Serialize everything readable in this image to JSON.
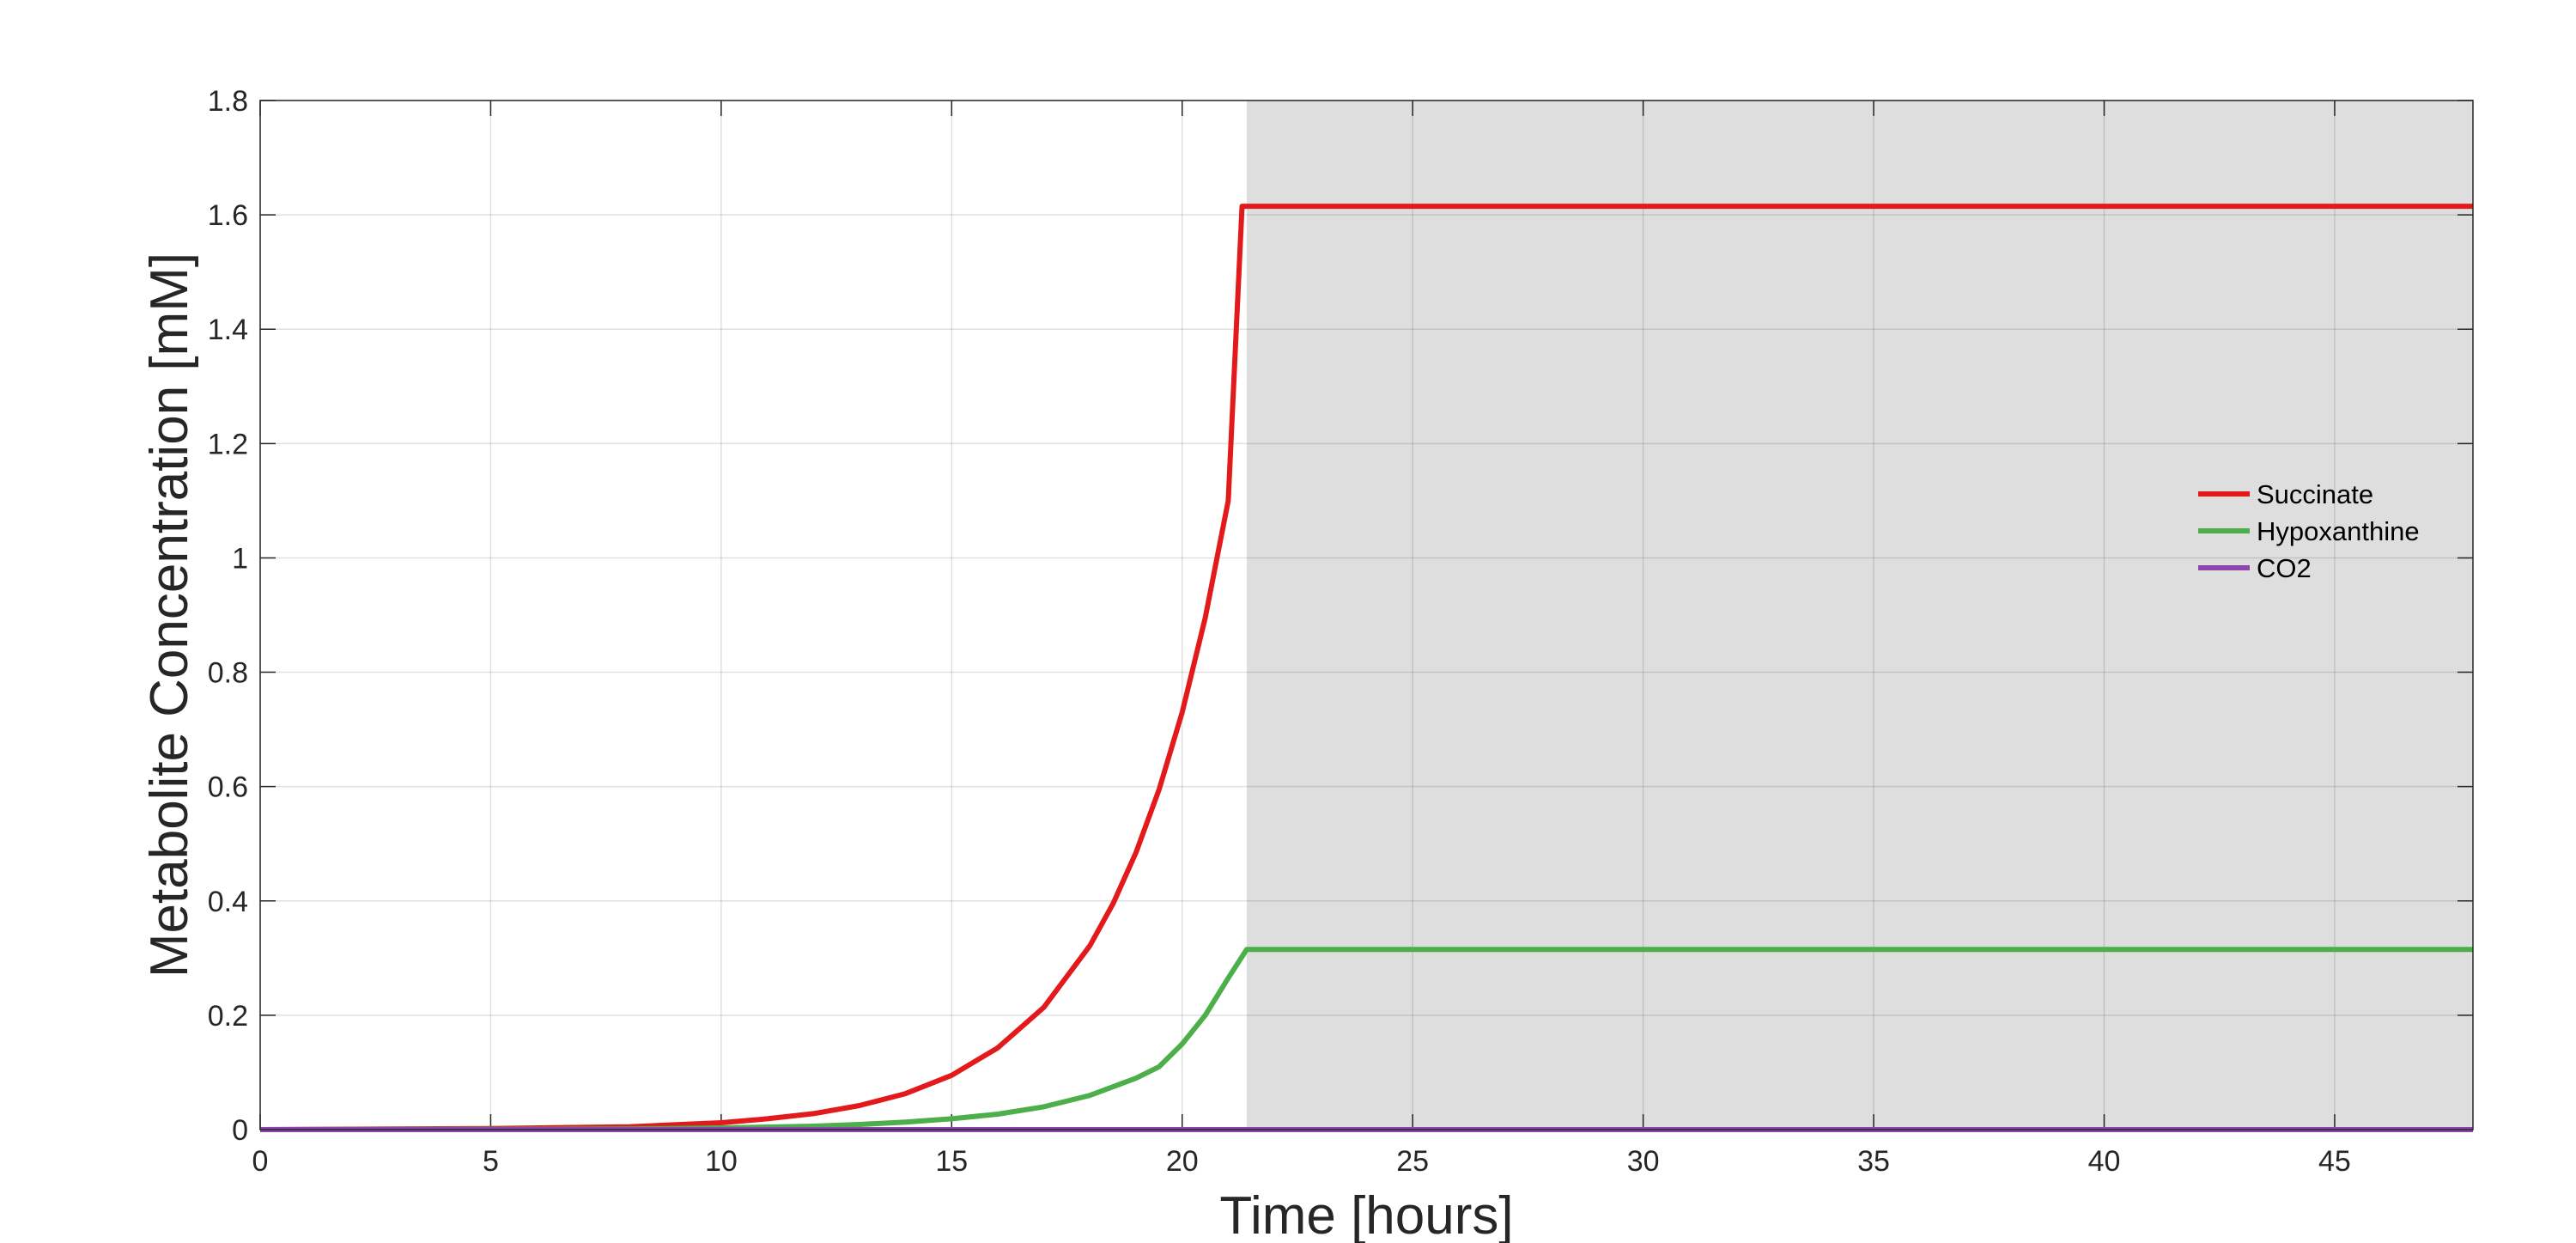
{
  "chart_data": {
    "type": "line",
    "title": "",
    "xlabel": "Time [hours]",
    "ylabel": "Metabolite Concentration [mM]",
    "xlim": [
      0,
      48
    ],
    "ylim": [
      0,
      1.8
    ],
    "xticks": [
      "0",
      "5",
      "10",
      "15",
      "20",
      "25",
      "30",
      "35",
      "40",
      "45"
    ],
    "yticks": [
      "0",
      "0.2",
      "0.4",
      "0.6",
      "0.8",
      "1",
      "1.2",
      "1.4",
      "1.6",
      "1.8"
    ],
    "grid": true,
    "legend_position": "right",
    "shaded_region": {
      "x_start": 21.4,
      "x_end": 48,
      "color": "#dedede"
    },
    "series": [
      {
        "name": "Succinate",
        "color": "#e31a1c",
        "x": [
          0,
          5,
          8,
          10,
          11,
          12,
          13,
          14,
          15,
          16,
          17,
          18,
          18.5,
          19,
          19.5,
          20,
          20.5,
          21,
          21.3,
          22,
          30,
          40,
          48
        ],
        "y": [
          0,
          0.002,
          0.005,
          0.012,
          0.019,
          0.028,
          0.042,
          0.063,
          0.095,
          0.143,
          0.214,
          0.322,
          0.395,
          0.485,
          0.595,
          0.73,
          0.895,
          1.1,
          1.615,
          1.615,
          1.615,
          1.615,
          1.615
        ]
      },
      {
        "name": "Hypoxanthine",
        "color": "#4daf4a",
        "x": [
          0,
          8,
          10,
          12,
          13,
          14,
          15,
          16,
          17,
          18,
          19,
          19.5,
          20,
          20.5,
          21,
          21.4,
          22,
          30,
          40,
          48
        ],
        "y": [
          0,
          0.001,
          0.003,
          0.006,
          0.009,
          0.013,
          0.019,
          0.027,
          0.04,
          0.06,
          0.09,
          0.11,
          0.15,
          0.2,
          0.265,
          0.315,
          0.315,
          0.315,
          0.315,
          0.315
        ]
      },
      {
        "name": "CO2",
        "color": "#8e44ad",
        "x": [
          0,
          48
        ],
        "y": [
          0,
          0
        ]
      }
    ]
  }
}
